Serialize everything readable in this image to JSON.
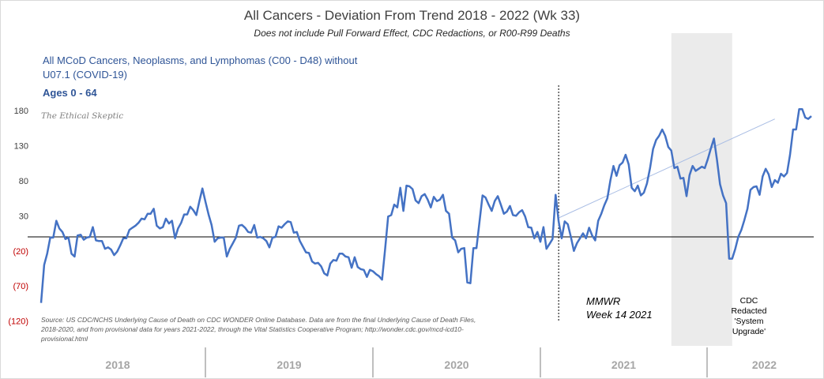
{
  "chart_data": {
    "type": "line",
    "title": "All Cancers - Deviation From Trend  2018 - 2022 (Wk 33)",
    "subtitle": "Does not include Pull Forward Effect, CDC Redactions, or R00-R99 Deaths",
    "series_description": "All MCoD Cancers, Neoplasms, and Lymphomas (C00 - D48) without U07.1 (COVID-19)",
    "age_note": "Ages 0 - 64",
    "watermark": "The Ethical Skeptic",
    "source_note": "Source: US CDC/NCHS Underlying Cause of Death on CDC WONDER Online Database. Data are from the final Underlying Cause of Death Files, 2018-2020, and from provisional data for years 2021-2022, through the Vital Statistics Cooperative Program; http://wonder.cdc.gov/mcd-icd10-provisional.html",
    "annotations": {
      "mmwr_line1": "MMWR",
      "mmwr_line2": "Week 14 2021",
      "cdc_line1": "CDC",
      "cdc_line2": "Redacted",
      "cdc_line3": "'System",
      "cdc_line4": "Upgrade'"
    },
    "y_ticks": [
      {
        "value": 180,
        "label": "180"
      },
      {
        "value": 130,
        "label": "130"
      },
      {
        "value": 80,
        "label": "80"
      },
      {
        "value": 30,
        "label": "30"
      },
      {
        "value": -20,
        "label": "(20)"
      },
      {
        "value": -70,
        "label": "(70)"
      },
      {
        "value": -120,
        "label": "(120)"
      }
    ],
    "ylim": [
      -120,
      190
    ],
    "grid": false,
    "years": [
      "2018",
      "2019",
      "2020",
      "2021",
      "2022"
    ],
    "x": "weeks 1-242 (2018 Wk1 - 2022 Wk33)",
    "mmwr_week": 171,
    "redacted_weeks": [
      208,
      228
    ],
    "trend_line": {
      "start_week": 171,
      "start_value": 27,
      "end_week": 242,
      "end_value": 168
    },
    "colors": {
      "series": "#4472c4",
      "trend": "#a9bde4",
      "axis": "#000000",
      "shade": "#ebebeb",
      "negative_label": "#c00000"
    },
    "series": [
      {
        "values": [
          -94,
          -40,
          -24,
          -1,
          -1,
          23,
          12,
          7,
          -3,
          -1,
          -24,
          -28,
          2,
          3,
          -4,
          -1,
          0,
          14,
          -5,
          -6,
          -6,
          -17,
          -15,
          -18,
          -26,
          -21,
          -12,
          -2,
          -2,
          10,
          13,
          16,
          20,
          26,
          25,
          33,
          33,
          40,
          16,
          12,
          14,
          26,
          19,
          23,
          -2,
          12,
          20,
          32,
          32,
          43,
          38,
          31,
          51,
          69,
          50,
          32,
          17,
          -7,
          -2,
          -1,
          -1,
          -28,
          -17,
          -9,
          -1,
          16,
          17,
          13,
          7,
          6,
          17,
          -1,
          0,
          -2,
          -6,
          -15,
          -1,
          0,
          15,
          13,
          18,
          22,
          21,
          6,
          7,
          -6,
          -14,
          -22,
          -23,
          -35,
          -38,
          -37,
          -42,
          -52,
          -55,
          -38,
          -33,
          -34,
          -24,
          -24,
          -28,
          -29,
          -44,
          -29,
          -43,
          -46,
          -47,
          -57,
          -47,
          -49,
          -53,
          -56,
          -61,
          -17,
          29,
          31,
          46,
          42,
          70,
          37,
          73,
          72,
          68,
          52,
          48,
          58,
          61,
          53,
          42,
          57,
          51,
          53,
          60,
          37,
          33,
          -1,
          -5,
          -22,
          -17,
          -16,
          -65,
          -66,
          -16,
          -16,
          21,
          59,
          56,
          46,
          37,
          51,
          58,
          46,
          33,
          36,
          44,
          31,
          30,
          35,
          38,
          29,
          14,
          13,
          -2,
          7,
          -7,
          14,
          -17,
          -10,
          -3,
          60,
          22,
          -2,
          22,
          18,
          0,
          -20,
          -9,
          -2,
          5,
          -2,
          13,
          2,
          -5,
          23,
          33,
          45,
          55,
          81,
          101,
          87,
          102,
          106,
          117,
          103,
          70,
          65,
          73,
          59,
          63,
          76,
          98,
          125,
          138,
          144,
          153,
          144,
          128,
          123,
          98,
          100,
          83,
          84,
          58,
          88,
          101,
          94,
          97,
          100,
          98,
          111,
          126,
          140,
          110,
          75,
          59,
          48,
          -31,
          -31,
          -17,
          0,
          10,
          24,
          40,
          67,
          71,
          72,
          60,
          86,
          97,
          89,
          71,
          81,
          77,
          90,
          86,
          91,
          117,
          153,
          153,
          182,
          182,
          170,
          168,
          172
        ]
      }
    ]
  }
}
